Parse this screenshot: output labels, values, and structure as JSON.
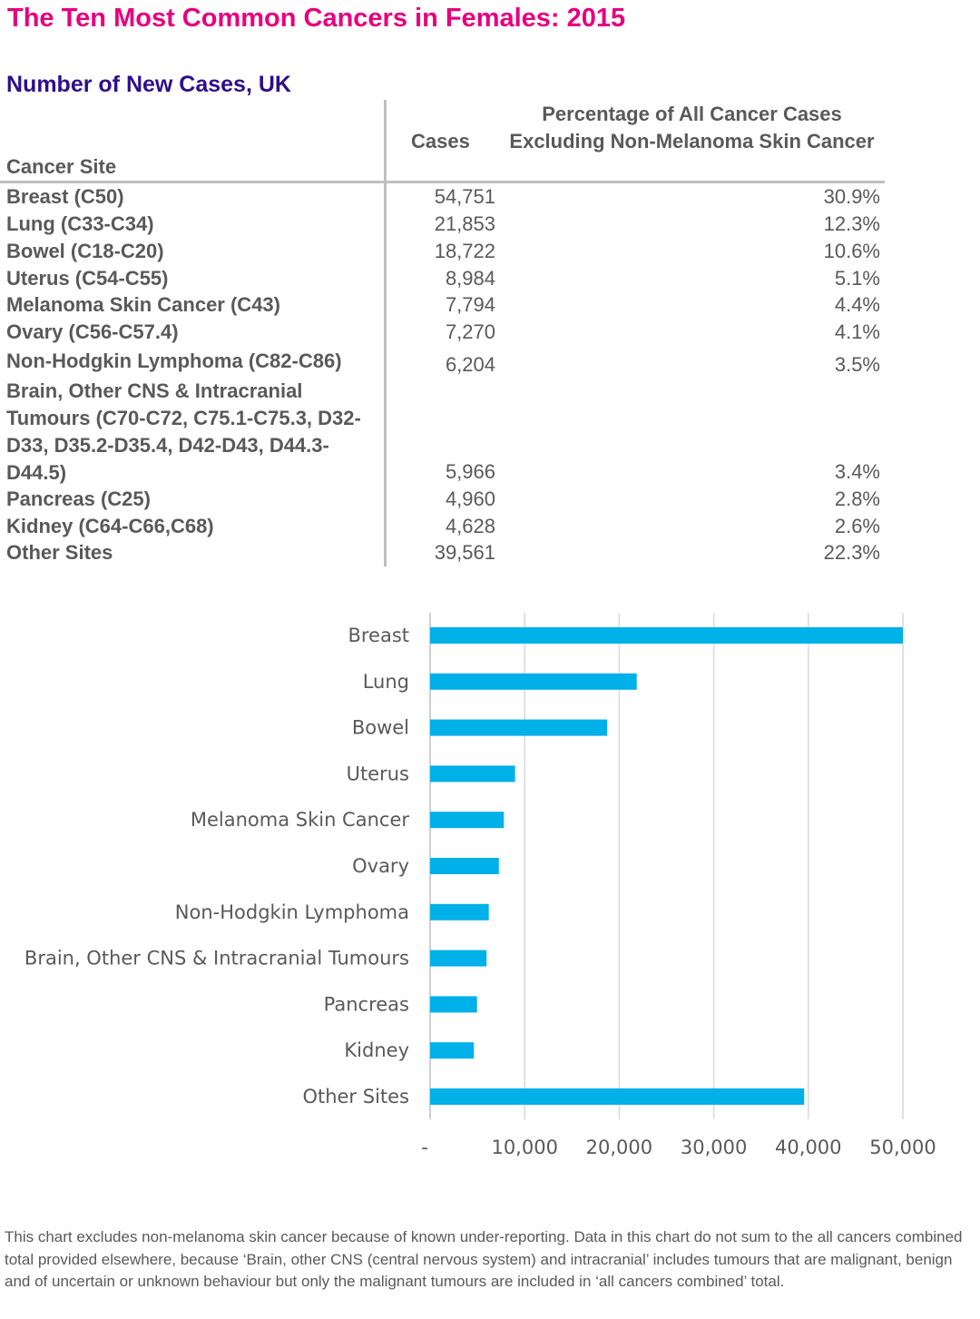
{
  "title": "The Ten Most Common Cancers in Females: 2015",
  "subtitle": "Number of New Cases, UK",
  "table": {
    "headers": {
      "site": "Cancer Site",
      "cases": "Cases",
      "pct": "Percentage of All Cancer Cases Excluding Non-Melanoma Skin Cancer"
    },
    "rows": [
      {
        "site": "Breast (C50)",
        "cases": "54,751",
        "pct": "30.9%"
      },
      {
        "site": "Lung (C33-C34)",
        "cases": "21,853",
        "pct": "12.3%"
      },
      {
        "site": "Bowel (C18-C20)",
        "cases": "18,722",
        "pct": "10.6%"
      },
      {
        "site": "Uterus (C54-C55)",
        "cases": "8,984",
        "pct": "5.1%"
      },
      {
        "site": "Melanoma Skin Cancer (C43)",
        "cases": "7,794",
        "pct": "4.4%"
      },
      {
        "site": "Ovary (C56-C57.4)",
        "cases": "7,270",
        "pct": "4.1%"
      },
      {
        "site": "Non-Hodgkin Lymphoma (C82-C86)",
        "cases": "6,204",
        "pct": "3.5%"
      },
      {
        "site": "Brain, Other CNS & Intracranial Tumours (C70-C72, C75.1-C75.3, D32-D33, D35.2-D35.4, D42-D43, D44.3-D44.5)",
        "cases": "5,966",
        "pct": "3.4%"
      },
      {
        "site": "Pancreas (C25)",
        "cases": "4,960",
        "pct": "2.8%"
      },
      {
        "site": "Kidney (C64-C66,C68)",
        "cases": "4,628",
        "pct": "2.6%"
      },
      {
        "site": "Other Sites",
        "cases": "39,561",
        "pct": "22.3%"
      }
    ]
  },
  "chart_data": {
    "type": "bar",
    "orientation": "horizontal",
    "categories": [
      "Breast",
      "Lung",
      "Bowel",
      "Uterus",
      "Melanoma Skin Cancer",
      "Ovary",
      "Non-Hodgkin Lymphoma",
      "Brain, Other CNS & Intracranial Tumours",
      "Pancreas",
      "Kidney",
      "Other Sites"
    ],
    "values": [
      54751,
      21853,
      18722,
      8984,
      7794,
      7270,
      6204,
      5966,
      4960,
      4628,
      39561
    ],
    "xlim": [
      0,
      50000
    ],
    "xticks": [
      0,
      10000,
      20000,
      30000,
      40000,
      50000
    ],
    "xtick_labels": [
      "-",
      "10,000",
      "20,000",
      "30,000",
      "40,000",
      "50,000"
    ],
    "grid": "vertical",
    "bar_color": "#00b0e8"
  },
  "footnote": "This chart excludes non-melanoma skin cancer because of known under-reporting. Data in this chart do not sum to the all cancers combined total provided elsewhere, because ‘Brain, other CNS (central nervous system) and intracranial’ includes tumours that are malignant, benign and of uncertain or unknown behaviour but only the malignant tumours are included in ‘all cancers combined’ total."
}
